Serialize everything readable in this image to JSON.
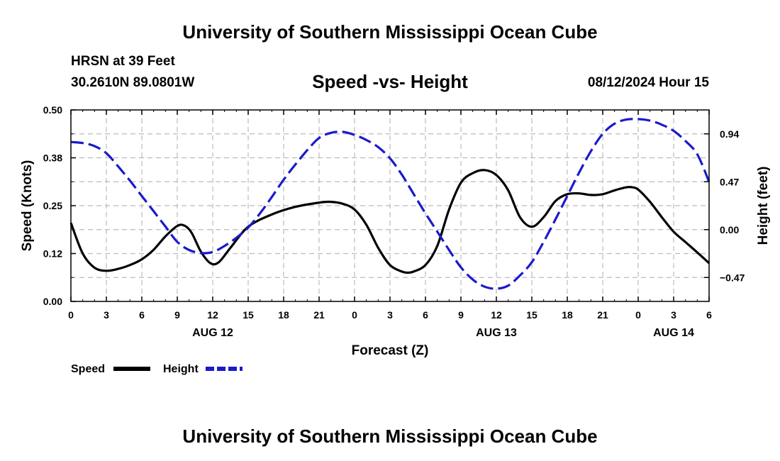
{
  "header": {
    "title": "University of Southern Mississippi Ocean Cube",
    "station": "HRSN at 39 Feet",
    "coords": "30.2610N  89.0801W",
    "subtitle": "Speed -vs- Height",
    "datetime": "08/12/2024 Hour 15"
  },
  "footer": {
    "title": "University of Southern Mississippi Ocean Cube"
  },
  "colors": {
    "speed": "#000000",
    "height": "#1a1acc",
    "grid": "#bbbbbb"
  },
  "chart_data": {
    "type": "line",
    "title": "Speed -vs- Height",
    "xlabel": "Forecast (Z)",
    "ylabel": "Speed (Knots)",
    "y2label": "Height (feet)",
    "xlim": [
      0,
      54
    ],
    "ylim": [
      0,
      0.5
    ],
    "y2lim": [
      -0.705,
      1.175
    ],
    "x_ticks": [
      0,
      3,
      6,
      9,
      12,
      15,
      18,
      21,
      24,
      27,
      30,
      33,
      36,
      39,
      42,
      45,
      48,
      51,
      54
    ],
    "x_tick_labels": [
      "0",
      "3",
      "6",
      "9",
      "12",
      "15",
      "18",
      "21",
      "0",
      "3",
      "6",
      "9",
      "12",
      "15",
      "18",
      "21",
      "0",
      "3",
      "6"
    ],
    "y_ticks": [
      0.0,
      0.125,
      0.25,
      0.375,
      0.5
    ],
    "y_tick_labels": [
      "0.00",
      "0.12",
      "0.25",
      "0.38",
      "0.50"
    ],
    "y2_ticks": [
      -0.47,
      0.0,
      0.47,
      0.94
    ],
    "y2_tick_labels": [
      "−0.47",
      "0.00",
      "0.47",
      "0.94"
    ],
    "date_labels": [
      {
        "x": 12,
        "label": "AUG 12"
      },
      {
        "x": 36,
        "label": "AUG 13"
      },
      {
        "x": 51,
        "label": "AUG 14"
      }
    ],
    "grid": true,
    "legend": {
      "position": "bottom-left",
      "entries": [
        "Speed",
        "Height"
      ]
    },
    "series": [
      {
        "name": "Speed",
        "axis": "left",
        "style": "solid",
        "x": [
          0,
          1,
          2,
          3,
          4,
          5,
          6,
          7,
          8,
          9,
          9.6,
          10.2,
          11,
          11.8,
          12.5,
          13.5,
          15,
          17,
          19,
          21,
          22,
          23,
          24,
          25,
          26,
          27,
          28,
          28.5,
          29,
          30,
          31,
          32,
          33,
          34,
          35,
          36,
          37,
          38,
          39,
          40,
          41,
          42,
          43,
          44,
          45,
          46,
          47,
          47.5,
          48,
          49,
          50,
          51,
          52,
          53,
          54
        ],
        "values": [
          0.205,
          0.125,
          0.088,
          0.08,
          0.085,
          0.095,
          0.11,
          0.135,
          0.17,
          0.197,
          0.198,
          0.18,
          0.13,
          0.1,
          0.102,
          0.14,
          0.195,
          0.227,
          0.247,
          0.258,
          0.26,
          0.255,
          0.24,
          0.2,
          0.14,
          0.095,
          0.078,
          0.075,
          0.078,
          0.095,
          0.145,
          0.24,
          0.31,
          0.335,
          0.343,
          0.33,
          0.29,
          0.22,
          0.195,
          0.22,
          0.262,
          0.28,
          0.282,
          0.278,
          0.28,
          0.29,
          0.298,
          0.298,
          0.292,
          0.26,
          0.22,
          0.182,
          0.155,
          0.128,
          0.1
        ]
      },
      {
        "name": "Height",
        "axis": "right",
        "style": "dashed",
        "x": [
          0,
          1,
          2,
          3,
          4,
          5,
          6,
          7,
          8,
          9,
          10,
          11,
          12,
          13,
          14,
          15,
          16,
          17,
          18,
          19,
          20,
          21,
          22,
          23,
          24,
          25,
          26,
          27,
          28,
          29,
          30,
          31,
          32,
          33,
          34,
          35,
          36,
          37,
          38,
          39,
          40,
          41,
          42,
          43,
          44,
          45,
          46,
          47,
          48,
          49,
          50,
          51,
          52,
          53,
          54
        ],
        "values": [
          0.86,
          0.85,
          0.82,
          0.75,
          0.62,
          0.48,
          0.33,
          0.18,
          0.03,
          -0.12,
          -0.2,
          -0.23,
          -0.22,
          -0.16,
          -0.08,
          0.02,
          0.16,
          0.32,
          0.49,
          0.64,
          0.78,
          0.9,
          0.95,
          0.96,
          0.93,
          0.88,
          0.81,
          0.7,
          0.54,
          0.35,
          0.16,
          -0.02,
          -0.2,
          -0.37,
          -0.49,
          -0.56,
          -0.58,
          -0.55,
          -0.45,
          -0.32,
          -0.12,
          0.1,
          0.33,
          0.56,
          0.77,
          0.94,
          1.04,
          1.08,
          1.085,
          1.07,
          1.03,
          0.97,
          0.87,
          0.74,
          0.47
        ]
      }
    ]
  }
}
